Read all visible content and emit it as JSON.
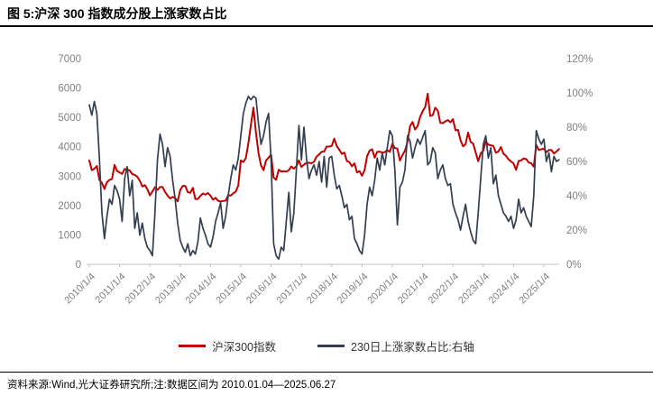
{
  "page": {
    "title": "图 5:沪深 300 指数成分股上涨家数占比",
    "source_note": "资料来源:Wind,光大证券研究所;注:数据区间为 2010.01.04—2025.06.27"
  },
  "colors": {
    "csi300_line": "#C00000",
    "ratio_line": "#333F50",
    "axis_label": "#7F7F7F",
    "axis_line": "#BFBFBF",
    "title_text": "#000000"
  },
  "chart_data": {
    "type": "line",
    "title": "图 5:沪深 300 指数成分股上涨家数占比",
    "grid": false,
    "legend_position": "bottom",
    "x_tick_labels": [
      "2010/1/4",
      "2011/1/4",
      "2012/1/4",
      "2013/1/4",
      "2014/1/4",
      "2015/1/4",
      "2016/1/4",
      "2017/1/4",
      "2018/1/4",
      "2019/1/4",
      "2020/1/4",
      "2021/1/4",
      "2022/1/4",
      "2023/1/4",
      "2024/1/4",
      "2025/1/4"
    ],
    "left_axis": {
      "min": 0,
      "max": 7000,
      "tick_step": 1000,
      "tick_labels": [
        "7000",
        "6000",
        "5000",
        "4000",
        "3000",
        "2000",
        "1000",
        "0"
      ]
    },
    "right_axis": {
      "min": 0,
      "max": 120,
      "tick_step": 20,
      "unit": "%",
      "tick_labels": [
        "120%",
        "100%",
        "80%",
        "60%",
        "40%",
        "20%",
        "0%"
      ]
    },
    "x_start_year": 2010,
    "x_resolution": "monthly-estimates",
    "series": [
      {
        "name": "沪深300指数",
        "axis": "left",
        "color": "#C00000",
        "values_by_year": {
          "2010": [
            3535,
            3204,
            3251,
            3345,
            2870,
            2768,
            2563,
            2796,
            2875,
            2905,
            3381,
            3179
          ],
          "2011": [
            3128,
            3076,
            3244,
            3223,
            3193,
            3069,
            3044,
            2981,
            2843,
            2651,
            2695,
            2555
          ],
          "2012": [
            2346,
            2478,
            2621,
            2529,
            2627,
            2632,
            2461,
            2338,
            2242,
            2293,
            2254,
            2139
          ],
          "2013": [
            2523,
            2669,
            2669,
            2455,
            2432,
            2601,
            2224,
            2222,
            2331,
            2411,
            2370,
            2425
          ],
          "2014": [
            2331,
            2202,
            2264,
            2161,
            2139,
            2155,
            2166,
            2356,
            2336,
            2420,
            2473,
            2683
          ],
          "2015": [
            3534,
            3482,
            3617,
            4124,
            4748,
            5335,
            4473,
            3796,
            3366,
            3203,
            3537,
            3629
          ],
          "2016": [
            3731,
            2946,
            2877,
            3222,
            3157,
            3168,
            3154,
            3203,
            3330,
            3254,
            3340,
            3538
          ],
          "2017": [
            3310,
            3388,
            3452,
            3456,
            3440,
            3492,
            3666,
            3737,
            3831,
            3837,
            4006,
            4006
          ],
          "2018": [
            4031,
            4276,
            4023,
            3898,
            3757,
            3802,
            3511,
            3477,
            3334,
            3439,
            3129,
            3172
          ],
          "2019": [
            3011,
            3202,
            3678,
            3872,
            3913,
            3630,
            3826,
            3835,
            3800,
            3815,
            3887,
            3828
          ],
          "2020": [
            4097,
            3955,
            3940,
            3530,
            3714,
            3867,
            4164,
            4696,
            4844,
            4587,
            4707,
            5015
          ],
          "2021": [
            5211,
            5352,
            5807,
            5048,
            5078,
            5331,
            5224,
            4811,
            4806,
            4866,
            4909,
            4832
          ],
          "2022": [
            4940,
            4563,
            4574,
            4223,
            4016,
            4091,
            4485,
            4170,
            4108,
            3805,
            3509,
            3775
          ],
          "2023": [
            3872,
            4181,
            4070,
            4051,
            4029,
            3799,
            3842,
            3991,
            3765,
            3690,
            3573,
            3497
          ],
          "2024": [
            3431,
            3215,
            3516,
            3537,
            3604,
            3580,
            3462,
            3442,
            3321,
            4060,
            3891,
            3917
          ],
          "2025": [
            3935,
            3817,
            3890,
            3887,
            3771,
            3840,
            3921
          ]
        }
      },
      {
        "name": "230日上涨家数占比:右轴",
        "axis": "right",
        "color": "#333F50",
        "unit": "%",
        "values_by_year": {
          "2010": [
            93,
            87,
            95,
            88,
            62,
            30,
            15,
            28,
            38,
            35,
            46,
            43
          ],
          "2011": [
            38,
            25,
            50,
            57,
            40,
            49,
            21,
            30,
            17,
            24,
            15,
            10
          ],
          "2012": [
            8,
            5,
            30,
            61,
            76,
            70,
            57,
            68,
            63,
            49,
            38,
            24
          ],
          "2013": [
            14,
            10,
            7,
            12,
            5,
            8,
            6,
            13,
            27,
            21,
            17,
            12
          ],
          "2014": [
            10,
            16,
            25,
            30,
            36,
            21,
            28,
            40,
            50,
            58,
            55,
            62
          ],
          "2015": [
            75,
            88,
            94,
            98,
            96,
            98,
            97,
            82,
            70,
            75,
            83,
            88
          ],
          "2016": [
            60,
            12,
            5,
            3,
            10,
            8,
            25,
            42,
            19,
            30,
            55,
            81
          ],
          "2017": [
            61,
            80,
            62,
            50,
            55,
            58,
            52,
            60,
            48,
            63,
            45,
            62
          ],
          "2018": [
            63,
            52,
            44,
            46,
            40,
            33,
            35,
            26,
            28,
            15,
            12,
            8
          ],
          "2019": [
            6,
            17,
            35,
            45,
            40,
            49,
            62,
            55,
            65,
            58,
            68,
            78
          ],
          "2020": [
            75,
            55,
            23,
            45,
            48,
            55,
            75,
            72,
            62,
            68,
            73,
            70
          ],
          "2021": [
            74,
            78,
            58,
            60,
            68,
            65,
            50,
            55,
            58,
            50,
            46,
            47
          ],
          "2022": [
            35,
            30,
            26,
            20,
            28,
            35,
            25,
            19,
            14,
            12,
            30,
            50
          ],
          "2023": [
            70,
            75,
            62,
            68,
            47,
            52,
            40,
            35,
            30,
            28,
            25,
            28
          ],
          "2024": [
            21,
            26,
            38,
            30,
            33,
            28,
            25,
            22,
            40,
            78,
            73,
            70
          ],
          "2025": [
            73,
            60,
            65,
            54,
            63,
            60,
            61
          ]
        }
      }
    ]
  }
}
